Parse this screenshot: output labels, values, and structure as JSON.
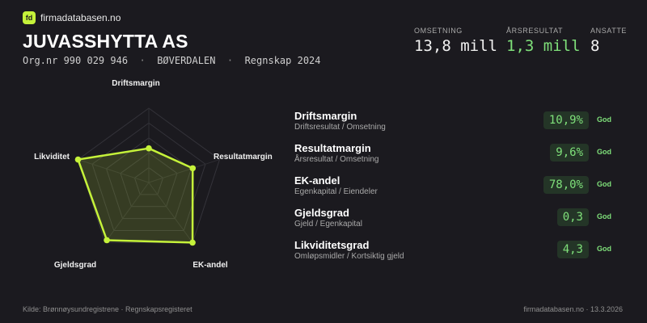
{
  "brand": {
    "logo_text": "fd",
    "name": "firmadatabasen.no"
  },
  "company": {
    "name": "JUVASSHYTTA AS",
    "orgnr": "Org.nr 990 029 946",
    "location": "BØVERDALEN",
    "period": "Regnskap 2024",
    "separator": "·"
  },
  "stats": [
    {
      "label": "OMSETNING",
      "value": "13,8 mill"
    },
    {
      "label": "ÅRSRESULTAT",
      "value": "1,3 mill"
    },
    {
      "label": "ANSATTE",
      "value": "8"
    }
  ],
  "colors": {
    "accent": "#c5f23a",
    "positive": "#7fe07a",
    "background": "#1b1a1f"
  },
  "metrics": [
    {
      "name": "Driftsmargin",
      "desc": "Driftsresultat / Omsetning",
      "value": "10,9%",
      "rating": "God"
    },
    {
      "name": "Resultatmargin",
      "desc": "Årsresultat / Omsetning",
      "value": "9,6%",
      "rating": "God"
    },
    {
      "name": "EK-andel",
      "desc": "Egenkapital / Eiendeler",
      "value": "78,0%",
      "rating": "God"
    },
    {
      "name": "Gjeldsgrad",
      "desc": "Gjeld / Egenkapital",
      "value": "0,3",
      "rating": "God"
    },
    {
      "name": "Likviditetsgrad",
      "desc": "Omløpsmidler / Kortsiktig gjeld",
      "value": "4,3",
      "rating": "God"
    }
  ],
  "chart_data": {
    "type": "radar",
    "axes": [
      "Driftsmargin",
      "Resultatmargin",
      "EK-andel",
      "Gjeldsgrad",
      "Likviditetsgrad"
    ],
    "labels": [
      "Driftsmargin",
      "Resultatmargin",
      "EK-andel",
      "Gjeldsgrad",
      "Likviditet"
    ],
    "values": [
      0.46,
      0.62,
      1.0,
      0.96,
      1.0
    ],
    "range": [
      0,
      1
    ],
    "grid_levels": 5
  },
  "footer": {
    "source": "Kilde: Brønnøysundregistrene · Regnskapsregisteret",
    "site_date": "firmadatabasen.no · 13.3.2026"
  }
}
